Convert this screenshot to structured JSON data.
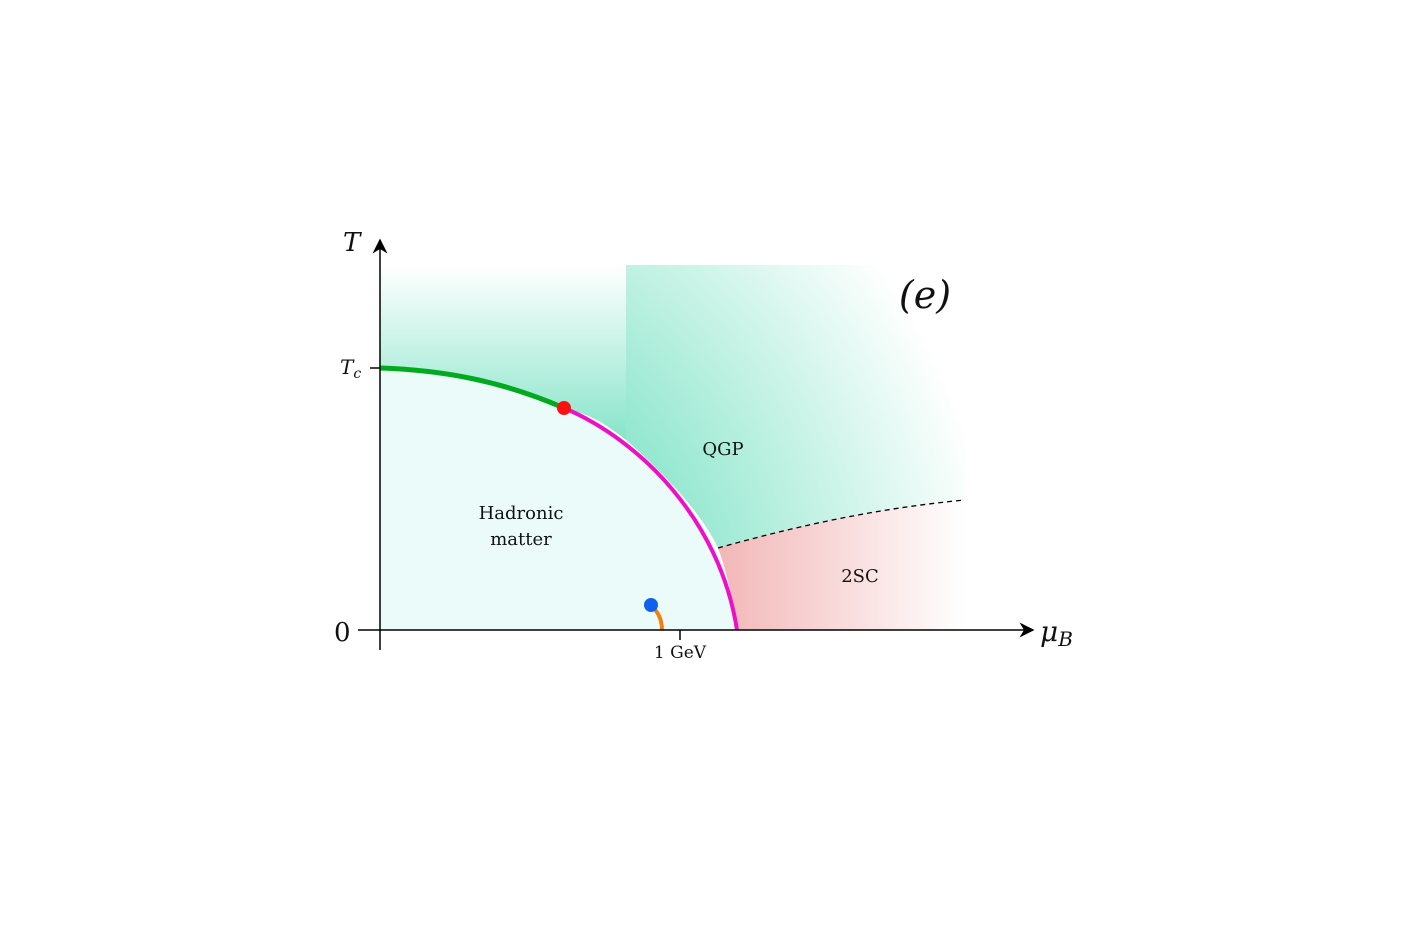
{
  "panel_label": "(e)",
  "axes": {
    "y_symbol": "T",
    "x_symbol_main": "μ",
    "x_symbol_sub": "B",
    "origin_label": "0",
    "tc_main": "T",
    "tc_sub": "c",
    "x_tick_label": "1 GeV"
  },
  "regions": {
    "hadronic_line1": "Hadronic",
    "hadronic_line2": "matter",
    "qgp": "QGP",
    "csc": "2SC"
  },
  "colors": {
    "crossover": "#00aa1f",
    "first_order": "#ee10c8",
    "critical_point": "#ff1010",
    "nuclear_point": "#1060f0",
    "nuclear_line": "#f08010",
    "hadronic_fill": "#eafbfa",
    "qgp_fill": "#5fdcb8",
    "csc_fill": "#ee9f9f"
  }
}
